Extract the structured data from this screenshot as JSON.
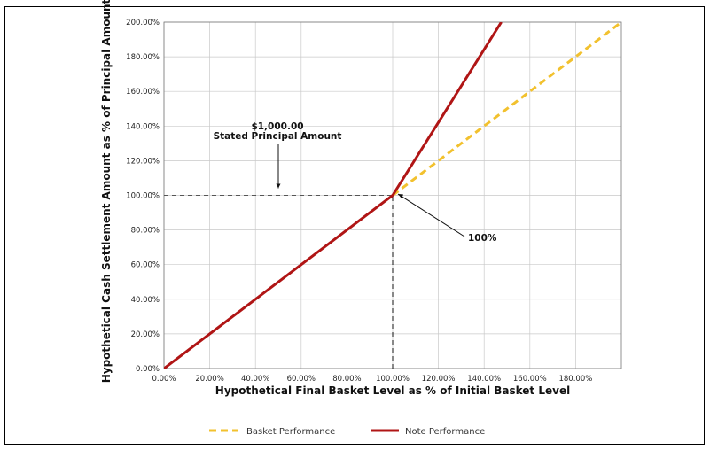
{
  "chart_data": {
    "type": "line",
    "title": "",
    "xlabel": "Hypothetical Final Basket Level as % of Initial Basket Level",
    "ylabel": "Hypothetical Cash Settlement Amount as % of Principal Amount",
    "xlim": [
      0,
      200
    ],
    "ylim": [
      0,
      200
    ],
    "x_ticks": [
      0,
      20,
      40,
      60,
      80,
      100,
      120,
      140,
      160,
      180
    ],
    "x_tick_labels": [
      "0.00%",
      "20.00%",
      "40.00%",
      "60.00%",
      "80.00%",
      "100.00%",
      "120.00%",
      "140.00%",
      "160.00%",
      "180.00%"
    ],
    "y_ticks": [
      0,
      20,
      40,
      60,
      80,
      100,
      120,
      140,
      160,
      180,
      200
    ],
    "y_tick_labels": [
      "0.00%",
      "20.00%",
      "40.00%",
      "60.00%",
      "80.00%",
      "100.00%",
      "120.00%",
      "140.00%",
      "160.00%",
      "180.00%",
      "200.00%"
    ],
    "grid": true,
    "legend_position": "bottom",
    "series": [
      {
        "name": "Basket Performance",
        "color": "#f2c12e",
        "style": "dashed",
        "x": [
          100,
          200
        ],
        "y": [
          100,
          200
        ]
      },
      {
        "name": "Note Performance",
        "color": "#b01515",
        "style": "solid",
        "x": [
          0,
          100,
          147.5
        ],
        "y": [
          0,
          100,
          200
        ]
      }
    ],
    "reference_lines": [
      {
        "orientation": "horizontal",
        "value": 100,
        "from": 0,
        "to": 100
      },
      {
        "orientation": "vertical",
        "value": 100,
        "from": 0,
        "to": 100
      }
    ],
    "annotations": [
      {
        "lines": [
          "$1,000.00",
          "Stated Principal Amount"
        ],
        "arrow_to": [
          50,
          100
        ]
      },
      {
        "lines": [
          "100%"
        ],
        "arrow_to": [
          100,
          90
        ]
      }
    ]
  }
}
